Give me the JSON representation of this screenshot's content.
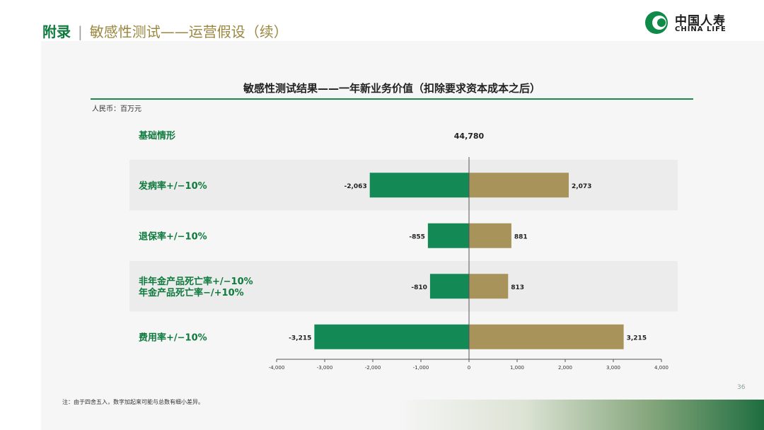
{
  "header": {
    "title_main": "附录",
    "title_sep": "|",
    "title_sub": "敏感性测试——运营假设（续）"
  },
  "logo": {
    "cn": "中国人寿",
    "en": "CHINA LIFE",
    "icon": "china-life-logo-icon"
  },
  "chart_data": {
    "type": "bar",
    "orientation": "horizontal-tornado",
    "title": "敏感性测试结果——一年新业务价值（扣除要求资本成本之后）",
    "unit_label": "人民币：百万元",
    "base": {
      "label": "基础情形",
      "value_label": "44,780",
      "value": 44780
    },
    "categories": [
      [
        "发病率+/−10%"
      ],
      [
        "退保率+/−10%"
      ],
      [
        "非年金产品死亡率+/−10%",
        "年金产品死亡率−/+10%"
      ],
      [
        "费用率+/−10%"
      ]
    ],
    "series": [
      {
        "values": [
          -2063,
          -855,
          -810,
          -3215
        ],
        "labels": [
          "-2,063",
          "-855",
          "-810",
          "-3,215"
        ]
      },
      {
        "values": [
          2073,
          881,
          813,
          3215
        ],
        "labels": [
          "2,073",
          "881",
          "813",
          "3,215"
        ]
      }
    ],
    "xlim": [
      -4000,
      4000
    ],
    "ticks": [
      -4000,
      -3000,
      -2000,
      -1000,
      0,
      1000,
      2000,
      3000,
      4000
    ],
    "tick_labels": [
      "-4,000",
      "-3,000",
      "-2,000",
      "-1,000",
      "0",
      "1,000",
      "2,000",
      "3,000",
      "4,000"
    ],
    "colors": {
      "negative": "#138a55",
      "positive": "#a8945a",
      "row_band": "#ececec",
      "axis": "#555555"
    }
  },
  "footnote": "注：由于四舍五入，数字加起来可能与总数有细小差异。",
  "page_number": "36"
}
